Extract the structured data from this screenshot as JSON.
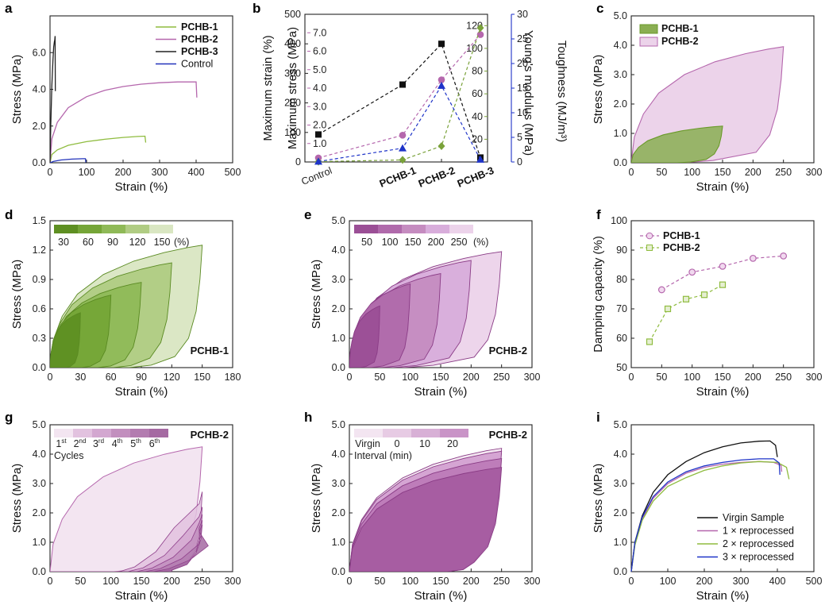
{
  "colors": {
    "PCHB-1": "#8fbc3f",
    "PCHB-2": "#b567ad",
    "PCHB-3": "#222222",
    "Control": "#2233bb",
    "green_dark": "#6a9a2a",
    "violet_light": "#ecd3ea",
    "blue": "#1e33c8",
    "olive": "#7aa23a"
  },
  "chart_data": [
    {
      "panel": "a",
      "type": "line",
      "xlabel": "Strain (%)",
      "ylabel": "Stress (MPa)",
      "xlim": [
        0,
        500
      ],
      "ylim": [
        0,
        8
      ],
      "xticks": [
        "0",
        "100",
        "200",
        "300",
        "400",
        "500"
      ],
      "yticks": [
        "0.0",
        "2.0",
        "4.0",
        "6.0"
      ],
      "yticks_values": [
        0,
        2,
        4,
        6
      ],
      "legend": [
        "PCHB-1",
        "PCHB-2",
        "PCHB-3",
        "Control"
      ],
      "series": [
        {
          "name": "PCHB-1",
          "x": [
            0,
            5,
            20,
            50,
            100,
            150,
            200,
            240,
            260,
            262
          ],
          "y": [
            0,
            0.45,
            0.7,
            0.95,
            1.15,
            1.28,
            1.38,
            1.43,
            1.45,
            1.1
          ]
        },
        {
          "name": "PCHB-2",
          "x": [
            0,
            5,
            20,
            50,
            100,
            150,
            200,
            250,
            300,
            350,
            400,
            402
          ],
          "y": [
            0,
            1.3,
            2.2,
            3.0,
            3.6,
            3.95,
            4.15,
            4.28,
            4.36,
            4.4,
            4.4,
            3.55
          ]
        },
        {
          "name": "PCHB-3",
          "x": [
            0,
            2,
            5,
            8,
            10,
            12,
            13,
            14,
            14.5
          ],
          "y": [
            0,
            2.0,
            4.2,
            5.6,
            6.3,
            6.6,
            6.7,
            6.9,
            3.9
          ]
        },
        {
          "name": "Control",
          "x": [
            0,
            10,
            30,
            60,
            90,
            97,
            98
          ],
          "y": [
            0,
            0.08,
            0.15,
            0.2,
            0.22,
            0.22,
            0.02
          ]
        }
      ]
    },
    {
      "panel": "b",
      "type": "scatter",
      "categories": [
        "Control",
        "PCHB-1",
        "PCHB-2",
        "PCHB-3"
      ],
      "axes": [
        {
          "label": "Maximum strain (%)",
          "lim": [
            0,
            500
          ],
          "ticks": [
            "0",
            "100",
            "200",
            "300",
            "400",
            "500"
          ]
        },
        {
          "label": "Maximum stress (MPa)",
          "lim": [
            0,
            8
          ],
          "ticks": [
            "1.0",
            "2.0",
            "3.0",
            "4.0",
            "5.0",
            "6.0",
            "7.0"
          ]
        },
        {
          "label": "Young's modulus (MPa)",
          "lim": [
            0,
            130
          ],
          "ticks": [
            "20",
            "40",
            "60",
            "80",
            "100",
            "120"
          ]
        },
        {
          "label": "Toughness (MJ/m³)",
          "lim": [
            0,
            30
          ],
          "ticks": [
            "0",
            "5",
            "10",
            "15",
            "20",
            "25",
            "30"
          ]
        }
      ],
      "series": [
        {
          "name": "Maximum strain (%)",
          "values": [
            93,
            262,
            400,
            15
          ]
        },
        {
          "name": "Maximum stress (MPa)",
          "values": [
            0.22,
            1.45,
            4.45,
            6.9
          ]
        },
        {
          "name": "Young's modulus (MPa)",
          "values": [
            0.3,
            1.8,
            14,
            118
          ]
        },
        {
          "name": "Toughness (MJ/m³)",
          "values": [
            0.1,
            2.8,
            15.5,
            0.5
          ]
        }
      ]
    },
    {
      "panel": "c",
      "type": "area",
      "xlabel": "Strain (%)",
      "ylabel": "Stress (MPa)",
      "xlim": [
        0,
        300
      ],
      "ylim": [
        0,
        5
      ],
      "xticks": [
        "0",
        "50",
        "100",
        "150",
        "200",
        "250",
        "300"
      ],
      "yticks": [
        "0.0",
        "1.0",
        "2.0",
        "3.0",
        "4.0",
        "5.0"
      ],
      "legend": [
        "PCHB-1",
        "PCHB-2"
      ],
      "series": [
        {
          "name": "PCHB-1",
          "max_strain": 150,
          "max_stress": 1.25,
          "residual": 75
        },
        {
          "name": "PCHB-2",
          "max_strain": 250,
          "max_stress": 3.95,
          "residual": 85
        }
      ]
    },
    {
      "panel": "d",
      "type": "area",
      "xlabel": "Strain (%)",
      "ylabel": "Stress (MPa)",
      "xlim": [
        0,
        180
      ],
      "ylim": [
        0,
        1.5
      ],
      "xticks": [
        "0",
        "30",
        "60",
        "90",
        "120",
        "150",
        "180"
      ],
      "yticks": [
        "0.0",
        "0.3",
        "0.6",
        "0.9",
        "1.2",
        "1.5"
      ],
      "label": "PCHB-1",
      "colorbar_ticks": [
        "30",
        "60",
        "90",
        "120",
        "150"
      ],
      "colorbar_unit": "(%)",
      "series": [
        {
          "max_strain": 30,
          "max_stress": 0.56
        },
        {
          "max_strain": 60,
          "max_stress": 0.74
        },
        {
          "max_strain": 90,
          "max_stress": 0.87
        },
        {
          "max_strain": 120,
          "max_stress": 1.07
        },
        {
          "max_strain": 150,
          "max_stress": 1.25
        }
      ]
    },
    {
      "panel": "e",
      "type": "area",
      "xlabel": "Strain (%)",
      "ylabel": "Stress (MPa)",
      "xlim": [
        0,
        300
      ],
      "ylim": [
        0,
        5
      ],
      "xticks": [
        "0",
        "50",
        "100",
        "150",
        "200",
        "250",
        "300"
      ],
      "yticks": [
        "0.0",
        "1.0",
        "2.0",
        "3.0",
        "4.0",
        "5.0"
      ],
      "label": "PCHB-2",
      "colorbar_ticks": [
        "50",
        "100",
        "150",
        "200",
        "250"
      ],
      "colorbar_unit": "(%)",
      "series": [
        {
          "max_strain": 50,
          "max_stress": 2.1
        },
        {
          "max_strain": 100,
          "max_stress": 2.85
        },
        {
          "max_strain": 150,
          "max_stress": 3.2
        },
        {
          "max_strain": 200,
          "max_stress": 3.65
        },
        {
          "max_strain": 250,
          "max_stress": 3.95
        }
      ]
    },
    {
      "panel": "f",
      "type": "line",
      "xlabel": "Strain (%)",
      "ylabel": "Damping capacity (%)",
      "xlim": [
        0,
        300
      ],
      "ylim": [
        50,
        100
      ],
      "xticks": [
        "0",
        "50",
        "100",
        "150",
        "200",
        "250",
        "300"
      ],
      "yticks": [
        "50",
        "60",
        "70",
        "80",
        "90",
        "100"
      ],
      "legend": [
        "PCHB-1",
        "PCHB-2"
      ],
      "series": [
        {
          "name": "PCHB-1",
          "x": [
            50,
            100,
            150,
            200,
            250
          ],
          "y": [
            76.5,
            82.5,
            84.5,
            87.2,
            88
          ]
        },
        {
          "name": "PCHB-2",
          "x": [
            30,
            60,
            90,
            120,
            150
          ],
          "y": [
            58.8,
            70,
            73.3,
            74.8,
            78.2
          ]
        }
      ]
    },
    {
      "panel": "g",
      "type": "area",
      "xlabel": "Strain (%)",
      "ylabel": "Stress (MPa)",
      "xlim": [
        0,
        300
      ],
      "ylim": [
        0,
        5
      ],
      "xticks": [
        "0",
        "50",
        "100",
        "150",
        "200",
        "250",
        "300"
      ],
      "yticks": [
        "0.0",
        "1.0",
        "2.0",
        "3.0",
        "4.0",
        "5.0"
      ],
      "label": "PCHB-2",
      "colorbar_ticks": [
        "1",
        "2",
        "3",
        "4",
        "5",
        "6"
      ],
      "colorbar_sup": [
        "st",
        "nd",
        "rd",
        "th",
        "th",
        "th"
      ],
      "colorbar_title": "Cycles",
      "series": [
        {
          "cycle": 1,
          "max_stress": 4.25
        },
        {
          "cycle": 2,
          "max_stress": 2.72
        },
        {
          "cycle": 3,
          "max_stress": 2.2
        },
        {
          "cycle": 4,
          "max_stress": 1.95
        },
        {
          "cycle": 5,
          "max_stress": 1.75
        },
        {
          "cycle": 6,
          "max_stress": 1.6
        }
      ]
    },
    {
      "panel": "h",
      "type": "area",
      "xlabel": "Strain (%)",
      "ylabel": "Stress (MPa)",
      "xlim": [
        0,
        300
      ],
      "ylim": [
        0,
        5
      ],
      "xticks": [
        "0",
        "50",
        "100",
        "150",
        "200",
        "250",
        "300"
      ],
      "yticks": [
        "0.0",
        "1.0",
        "2.0",
        "3.0",
        "4.0",
        "5.0"
      ],
      "label": "PCHB-2",
      "colorbar_ticks": [
        "Virgin",
        "0",
        "10",
        "20"
      ],
      "colorbar_title": "Interval (min)",
      "series": [
        {
          "name": "Virgin",
          "max_stress": 4.2
        },
        {
          "name": "0",
          "max_stress": 3.55
        },
        {
          "name": "10",
          "max_stress": 3.85
        },
        {
          "name": "20",
          "max_stress": 4.1
        }
      ]
    },
    {
      "panel": "i",
      "type": "line",
      "xlabel": "Strain (%)",
      "ylabel": "Stress (MPa)",
      "xlim": [
        0,
        500
      ],
      "ylim": [
        0,
        5
      ],
      "xticks": [
        "0",
        "100",
        "200",
        "300",
        "400",
        "500"
      ],
      "yticks": [
        "0.0",
        "1.0",
        "2.0",
        "3.0",
        "4.0",
        "5.0"
      ],
      "legend": [
        "Virgin Sample",
        "1 × reprocessed",
        "2 × reprocessed",
        "3 × reprocessed"
      ],
      "series": [
        {
          "name": "Virgin Sample",
          "x": [
            0,
            10,
            30,
            60,
            100,
            150,
            200,
            250,
            300,
            350,
            380,
            395,
            400
          ],
          "y": [
            0,
            1.0,
            1.9,
            2.7,
            3.3,
            3.75,
            4.05,
            4.25,
            4.38,
            4.44,
            4.45,
            4.3,
            3.9
          ]
        },
        {
          "name": "1 × reprocessed",
          "x": [
            0,
            10,
            30,
            60,
            100,
            150,
            200,
            250,
            300,
            350,
            390,
            410,
            412
          ],
          "y": [
            0,
            0.95,
            1.8,
            2.5,
            3.0,
            3.35,
            3.55,
            3.66,
            3.72,
            3.75,
            3.72,
            3.62,
            3.4
          ]
        },
        {
          "name": "2 × reprocessed",
          "x": [
            0,
            10,
            30,
            60,
            100,
            150,
            200,
            250,
            300,
            350,
            400,
            425,
            432
          ],
          "y": [
            0,
            0.9,
            1.75,
            2.4,
            2.9,
            3.2,
            3.45,
            3.6,
            3.7,
            3.75,
            3.72,
            3.55,
            3.15
          ]
        },
        {
          "name": "3 × reprocessed",
          "x": [
            0,
            10,
            30,
            60,
            100,
            150,
            200,
            250,
            300,
            350,
            390,
            405,
            407
          ],
          "y": [
            0,
            1.0,
            1.85,
            2.55,
            3.05,
            3.4,
            3.6,
            3.72,
            3.8,
            3.84,
            3.84,
            3.7,
            3.3
          ]
        }
      ]
    }
  ]
}
